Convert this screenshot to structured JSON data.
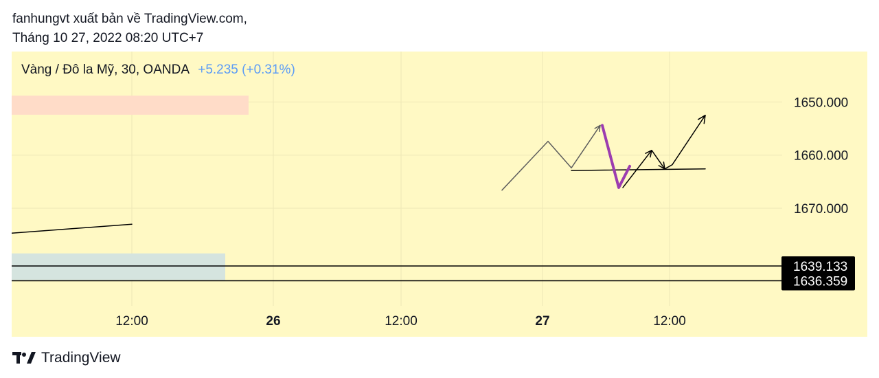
{
  "publisher": {
    "line1": "fanhungvt xuất bản về TradingView.com,",
    "line2": "Tháng 10 27, 2022 08:20 UTC+7"
  },
  "legend": {
    "symbol": "Vàng / Đô la Mỹ, 30, OANDA",
    "change": "+5.235 (+0.31%)",
    "change_color": "#5b9cf6"
  },
  "colors": {
    "background": "#fff9c4",
    "grid": "#eee7b6",
    "sell_zone": "#ffdcc8",
    "buy_zone": "#d5e4df",
    "drawing": "#000000",
    "path_gray": "#5d5d5d",
    "arrow_purple": "#9c3cb0"
  },
  "chart_data": {
    "type": "line",
    "symbol": "XAUUSD",
    "interval": "30",
    "y_axis": {
      "ticks": [
        "1650.000",
        "1660.000",
        "1670.000"
      ],
      "price_labels": [
        "1639.133",
        "1636.359"
      ]
    },
    "x_axis": {
      "ticks": [
        {
          "label": "12:00",
          "bold": false
        },
        {
          "label": "26",
          "bold": true
        },
        {
          "label": "12:00",
          "bold": false
        },
        {
          "label": "27",
          "bold": true
        },
        {
          "label": "12:00",
          "bold": false
        }
      ]
    },
    "horizontal_lines": [
      1639.133,
      1636.359
    ],
    "zones": [
      {
        "type": "sell",
        "price_top": 1671.2,
        "price_bottom": 1667.6
      },
      {
        "type": "buy",
        "price_top": 1641.5,
        "price_bottom": 1636.5
      }
    ],
    "gray_path_prices": [
      1653.4,
      1662.6,
      1657.6,
      1665.6
    ],
    "purple_arrow_prices": [
      1665.6,
      1653.9,
      1657.9
    ],
    "black_path_prices": [
      1653.9,
      1660.9,
      1657.4,
      1658.2,
      1667.5
    ],
    "support_line_prices": [
      1657.1,
      1657.4
    ],
    "left_trend_prices": [
      1645.3,
      1647.0
    ]
  },
  "footer": {
    "brand": "TradingView",
    "logo_icon": "tradingview-logo-icon"
  }
}
